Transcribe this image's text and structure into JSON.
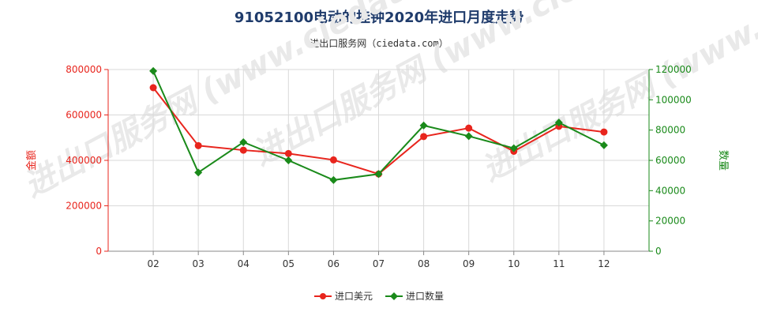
{
  "title": "91052100电动的挂钟2020年进口月度走势",
  "subtitle": "进出口服务网（ciedata.com）",
  "watermark": "进出口服务网 (www.ciedata.com)",
  "colors": {
    "series_amount": "#e8251d",
    "series_quantity": "#1a8a1a",
    "grid": "#d9d9d9",
    "title": "#1f3b6b"
  },
  "chart_data": {
    "type": "line",
    "title": "91052100电动的挂钟2020年进口月度走势",
    "categories": [
      "02",
      "03",
      "04",
      "05",
      "06",
      "07",
      "08",
      "09",
      "10",
      "11",
      "12"
    ],
    "y_left": {
      "label": "金额",
      "ylim": [
        0,
        800000
      ],
      "ticks": [
        0,
        200000,
        400000,
        600000,
        800000
      ]
    },
    "y_right": {
      "label": "数量",
      "ylim": [
        0,
        120000
      ],
      "ticks": [
        0,
        20000,
        40000,
        60000,
        80000,
        100000,
        120000
      ]
    },
    "grid": true,
    "legend_position": "bottom-center",
    "series": [
      {
        "name": "进口美元",
        "axis": "left",
        "marker": "circle",
        "values": [
          720000,
          465000,
          445000,
          430000,
          402000,
          340000,
          505000,
          542000,
          440000,
          550000,
          525000
        ]
      },
      {
        "name": "进口数量",
        "axis": "right",
        "marker": "diamond",
        "values": [
          119000,
          52000,
          72000,
          60000,
          47000,
          51000,
          83000,
          76000,
          68000,
          85000,
          70000
        ]
      }
    ]
  }
}
